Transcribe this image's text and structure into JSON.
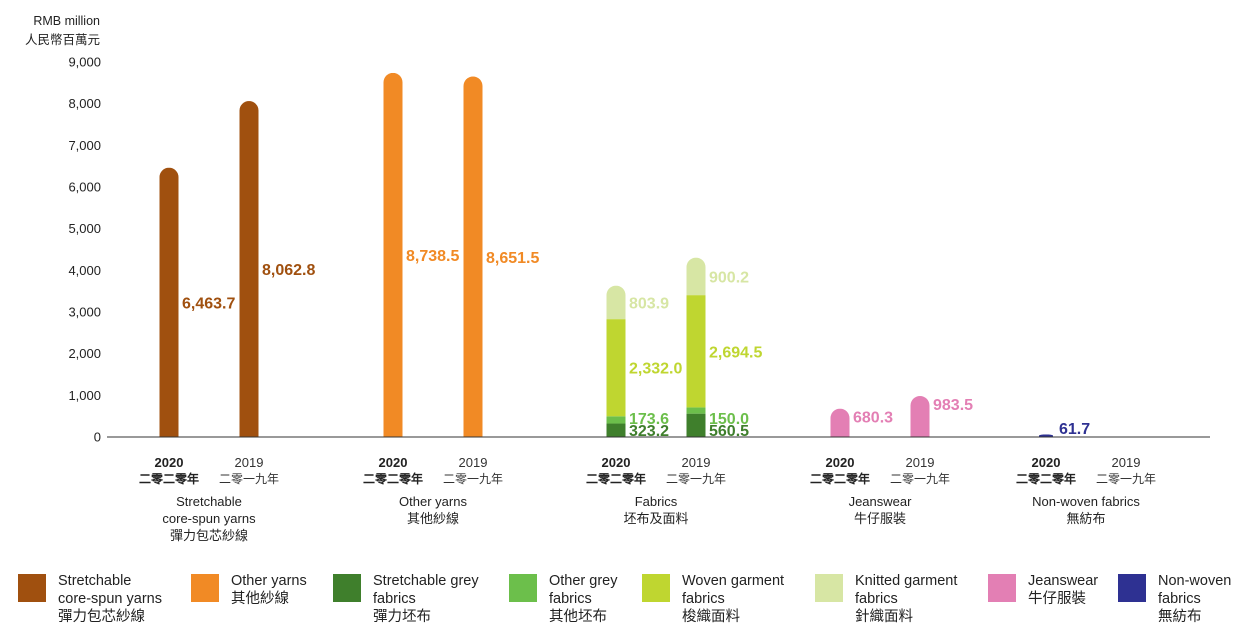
{
  "chart_data": {
    "type": "bar",
    "stacked": true,
    "unit_en": "RMB million",
    "unit_zh": "人民幣百萬元",
    "ylim": [
      0,
      9000
    ],
    "yticks": [
      "0",
      "1,000",
      "2,000",
      "3,000",
      "4,000",
      "5,000",
      "6,000",
      "7,000",
      "8,000",
      "9,000"
    ],
    "year_labels": {
      "current": "2020",
      "current_zh": "二零二零年",
      "previous": "2019",
      "previous_zh": "二零一九年"
    },
    "groups": [
      {
        "label_lines": [
          "Stretchable",
          "core-spun yarns",
          "彈力包芯紗線"
        ],
        "bars": [
          {
            "year": "current",
            "segments": [
              {
                "series": 0,
                "value": 6463.7,
                "label": "6,463.7"
              }
            ]
          },
          {
            "year": "previous",
            "segments": [
              {
                "series": 0,
                "value": 8062.8,
                "label": "8,062.8"
              }
            ]
          }
        ]
      },
      {
        "label_lines": [
          "Other yarns",
          "其他紗線"
        ],
        "bars": [
          {
            "year": "current",
            "segments": [
              {
                "series": 1,
                "value": 8738.5,
                "label": "8,738.5"
              }
            ]
          },
          {
            "year": "previous",
            "segments": [
              {
                "series": 1,
                "value": 8651.5,
                "label": "8,651.5"
              }
            ]
          }
        ]
      },
      {
        "label_lines": [
          "Fabrics",
          "坯布及面料"
        ],
        "bars": [
          {
            "year": "current",
            "segments": [
              {
                "series": 2,
                "value": 323.2,
                "label": "323.2"
              },
              {
                "series": 3,
                "value": 173.6,
                "label": "173.6"
              },
              {
                "series": 4,
                "value": 2332.0,
                "label": "2,332.0"
              },
              {
                "series": 5,
                "value": 803.9,
                "label": "803.9"
              }
            ]
          },
          {
            "year": "previous",
            "segments": [
              {
                "series": 2,
                "value": 560.5,
                "label": "560.5"
              },
              {
                "series": 3,
                "value": 150.0,
                "label": "150.0"
              },
              {
                "series": 4,
                "value": 2694.5,
                "label": "2,694.5"
              },
              {
                "series": 5,
                "value": 900.2,
                "label": "900.2"
              }
            ]
          }
        ]
      },
      {
        "label_lines": [
          "Jeanswear",
          "牛仔服裝"
        ],
        "bars": [
          {
            "year": "current",
            "segments": [
              {
                "series": 6,
                "value": 680.3,
                "label": "680.3"
              }
            ]
          },
          {
            "year": "previous",
            "segments": [
              {
                "series": 6,
                "value": 983.5,
                "label": "983.5"
              }
            ]
          }
        ]
      },
      {
        "label_lines": [
          "Non-woven fabrics",
          "無紡布"
        ],
        "bars": [
          {
            "year": "current",
            "segments": [
              {
                "series": 7,
                "value": 61.7,
                "label": "61.7"
              }
            ]
          },
          {
            "year": "previous",
            "segments": []
          }
        ]
      }
    ],
    "series": [
      {
        "lines": [
          "Stretchable",
          "core-spun yarns",
          "彈力包芯紗線"
        ],
        "color": "#a0500f"
      },
      {
        "lines": [
          "Other yarns",
          "其他紗線"
        ],
        "color": "#f18a25"
      },
      {
        "lines": [
          "Stretchable grey",
          "fabrics",
          "彈力坯布"
        ],
        "color": "#3f7f2c"
      },
      {
        "lines": [
          "Other grey",
          "fabrics",
          "其他坯布"
        ],
        "color": "#6cbf4b"
      },
      {
        "lines": [
          "Woven garment",
          "fabrics",
          "梭織面料"
        ],
        "color": "#bfd630"
      },
      {
        "lines": [
          "Knitted garment",
          "fabrics",
          "針織面料"
        ],
        "color": "#d7e6a4"
      },
      {
        "lines": [
          "Jeanswear",
          "牛仔服裝"
        ],
        "color": "#e37fb4"
      },
      {
        "lines": [
          "Non-woven",
          "fabrics",
          "無紡布"
        ],
        "color": "#2e3192"
      }
    ],
    "legend_position": "bottom"
  }
}
